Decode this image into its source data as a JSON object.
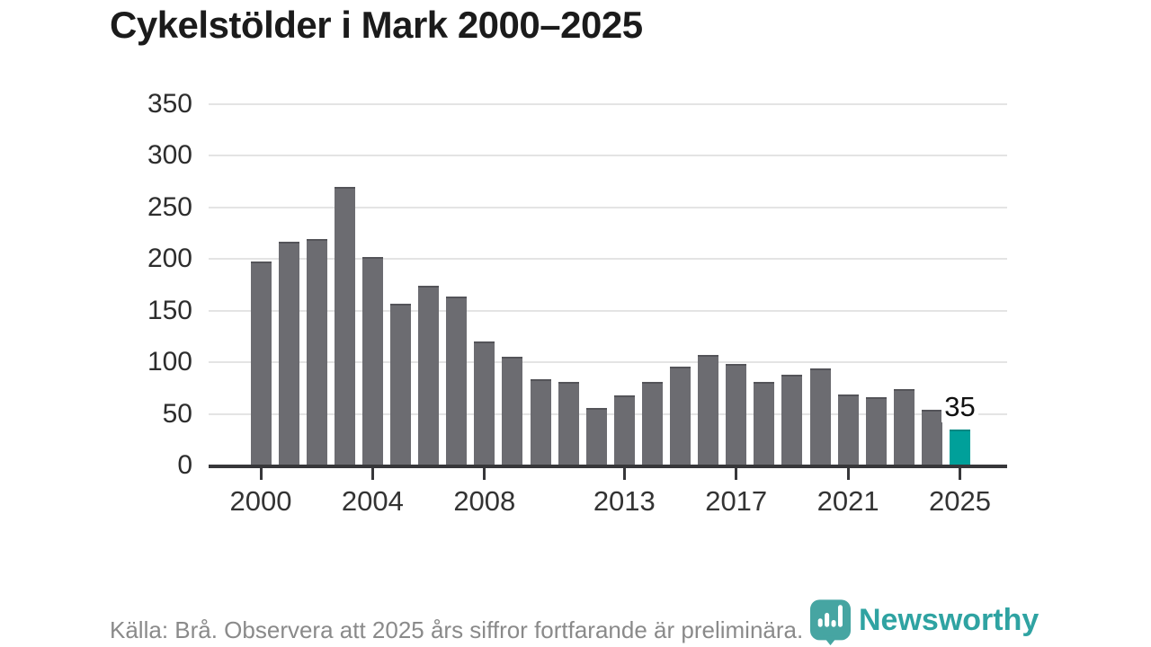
{
  "title": "Cykelstölder i Mark 2000–2025",
  "chart_data": {
    "type": "bar",
    "title": "Cykelstölder i Mark 2000–2025",
    "categories": [
      2000,
      2001,
      2002,
      2003,
      2004,
      2005,
      2006,
      2007,
      2008,
      2009,
      2010,
      2011,
      2012,
      2013,
      2014,
      2015,
      2016,
      2017,
      2018,
      2019,
      2020,
      2021,
      2022,
      2023,
      2024,
      2025
    ],
    "values": [
      198,
      217,
      219,
      270,
      202,
      157,
      174,
      164,
      120,
      105,
      84,
      81,
      56,
      68,
      81,
      96,
      107,
      98,
      81,
      88,
      94,
      69,
      66,
      74,
      54,
      35
    ],
    "xlabel": "",
    "ylabel": "",
    "ylim": [
      0,
      350
    ],
    "yticks": [
      0,
      50,
      100,
      150,
      200,
      250,
      300,
      350
    ],
    "xtick_years": [
      2000,
      2004,
      2008,
      2013,
      2017,
      2021,
      2025
    ],
    "grid": "horizontal",
    "legend": "none",
    "highlight_category": 2025,
    "highlight_value_label": "35",
    "bar_color": "#6c6c71",
    "highlight_color": "#00a09a"
  },
  "footer": {
    "source_note": "Källa: Brå. Observera att 2025 års siffror fortfarande är preliminära.",
    "logo_text": "Newsworthy"
  },
  "colors": {
    "axis": "#37373a",
    "grid": "#e4e4e4",
    "title_text": "#1b1b1b",
    "tick_text": "#333333",
    "footer_text": "#8a8a8a",
    "logo_icon": "#46a5a2",
    "logo_text": "#2fa3a2"
  }
}
